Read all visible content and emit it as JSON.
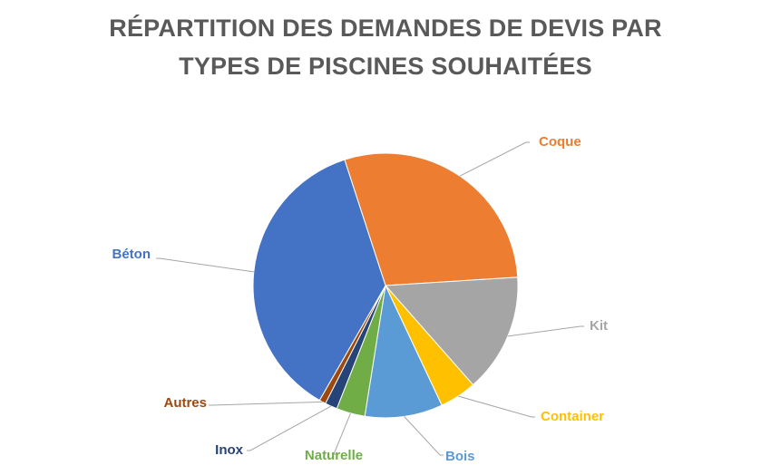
{
  "chart_data": {
    "type": "pie",
    "title_lines": [
      "RÉPARTITION DES DEMANDES DE DEVIS PAR",
      "TYPES DE PISCINES SOUHAITÉES"
    ],
    "start_angle_deg": -18,
    "slices": [
      {
        "label": "Coque",
        "value": 29.0,
        "color": "#ED7D31"
      },
      {
        "label": "Kit",
        "value": 14.5,
        "color": "#A5A5A5"
      },
      {
        "label": "Container",
        "value": 4.5,
        "color": "#FFC000"
      },
      {
        "label": "Bois",
        "value": 9.5,
        "color": "#5B9BD5"
      },
      {
        "label": "Naturelle",
        "value": 3.5,
        "color": "#70AD47"
      },
      {
        "label": "Inox",
        "value": 1.5,
        "color": "#264478"
      },
      {
        "label": "Autres",
        "value": 0.8,
        "color": "#9E480E"
      },
      {
        "label": "Béton",
        "value": 36.7,
        "color": "#4472C4"
      }
    ]
  }
}
